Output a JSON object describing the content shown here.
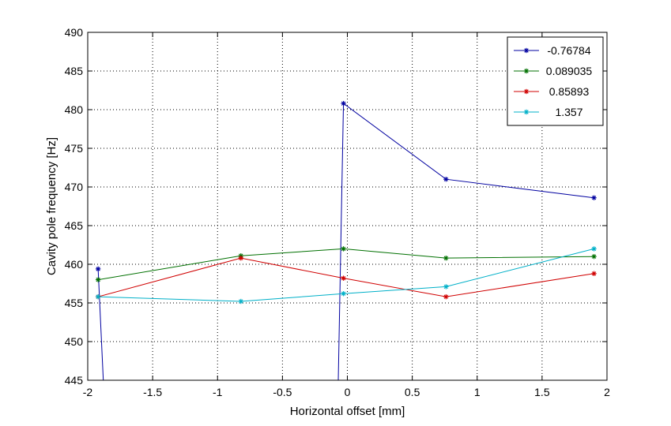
{
  "chart_data": {
    "type": "line",
    "title": "",
    "xlabel": "Horizontal offset [mm]",
    "ylabel": "Cavity pole frequency [Hz]",
    "xlim": [
      -2,
      2
    ],
    "ylim": [
      445,
      490
    ],
    "xticks": [
      -2,
      -1.5,
      -1,
      -0.5,
      0,
      0.5,
      1,
      1.5,
      2
    ],
    "xtick_labels": [
      "-2",
      "-1.5",
      "-1",
      "-0.5",
      "0",
      "0.5",
      "1",
      "1.5",
      "2"
    ],
    "yticks": [
      445,
      450,
      455,
      460,
      465,
      470,
      475,
      480,
      485,
      490
    ],
    "ytick_labels": [
      "445",
      "450",
      "455",
      "460",
      "465",
      "470",
      "475",
      "480",
      "485",
      "490"
    ],
    "grid": true,
    "legend": "top-right",
    "series": [
      {
        "name": "-0.76784",
        "color": "#0000a0",
        "marker": "*",
        "x": [
          -1.92,
          -1.88,
          -0.07,
          -0.03,
          0.76,
          1.9
        ],
        "y": [
          459.4,
          445,
          445,
          480.8,
          471,
          468.6
        ]
      },
      {
        "name": "0.089035",
        "color": "#007000",
        "marker": "*",
        "x": [
          -1.92,
          -0.82,
          -0.03,
          0.76,
          1.9
        ],
        "y": [
          458,
          461.1,
          462,
          460.8,
          461
        ]
      },
      {
        "name": "0.85893",
        "color": "#d00000",
        "marker": "*",
        "x": [
          -1.92,
          -0.82,
          -0.03,
          0.76,
          1.9
        ],
        "y": [
          455.8,
          460.8,
          458.2,
          455.8,
          458.8
        ]
      },
      {
        "name": "1.357",
        "color": "#00b0c8",
        "marker": "*",
        "x": [
          -1.92,
          -0.82,
          -0.03,
          0.76,
          1.9
        ],
        "y": [
          455.8,
          455.2,
          456.2,
          457.1,
          462
        ]
      }
    ]
  }
}
